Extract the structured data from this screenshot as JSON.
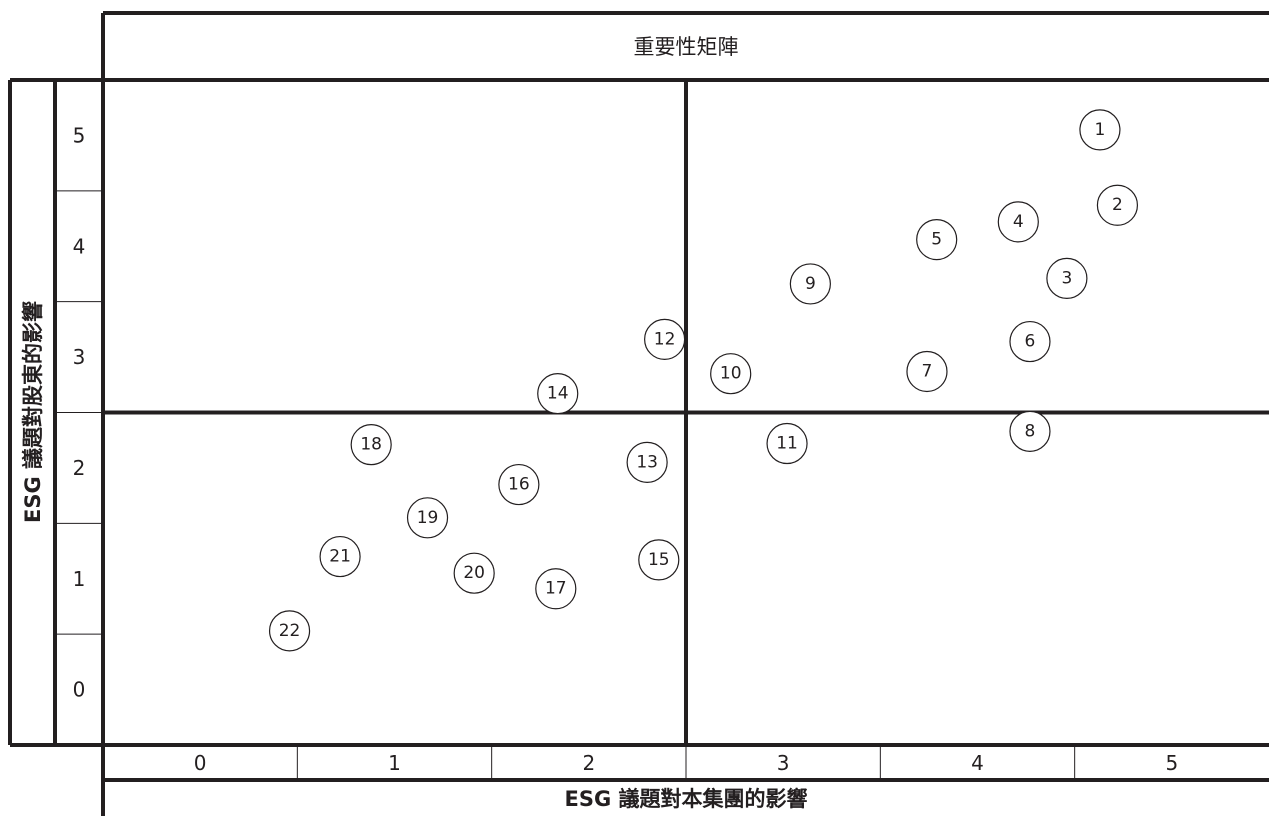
{
  "chart_data": {
    "type": "scatter",
    "title": "重要性矩陣",
    "xlabel": "ESG 議題對本集團的影響",
    "ylabel": "ESG 議題對股東的影響",
    "xlim": [
      0,
      6
    ],
    "ylim": [
      0,
      6
    ],
    "x_tick_labels": [
      "0",
      "1",
      "2",
      "3",
      "4",
      "5"
    ],
    "y_tick_labels": [
      "5",
      "4",
      "3",
      "2",
      "1",
      "0"
    ],
    "quadrant_split": {
      "x": 3,
      "y": 3
    },
    "points": [
      {
        "label": "1",
        "x": 5.13,
        "y": 5.55
      },
      {
        "label": "2",
        "x": 5.22,
        "y": 4.87
      },
      {
        "label": "3",
        "x": 4.96,
        "y": 4.21
      },
      {
        "label": "4",
        "x": 4.71,
        "y": 4.72
      },
      {
        "label": "5",
        "x": 4.29,
        "y": 4.56
      },
      {
        "label": "6",
        "x": 4.77,
        "y": 3.64
      },
      {
        "label": "7",
        "x": 4.24,
        "y": 3.37
      },
      {
        "label": "8",
        "x": 4.77,
        "y": 2.83
      },
      {
        "label": "9",
        "x": 3.64,
        "y": 4.16
      },
      {
        "label": "10",
        "x": 3.23,
        "y": 3.35
      },
      {
        "label": "11",
        "x": 3.52,
        "y": 2.72
      },
      {
        "label": "12",
        "x": 2.89,
        "y": 3.66
      },
      {
        "label": "13",
        "x": 2.8,
        "y": 2.55
      },
      {
        "label": "14",
        "x": 2.34,
        "y": 3.17
      },
      {
        "label": "15",
        "x": 2.86,
        "y": 1.67
      },
      {
        "label": "16",
        "x": 2.14,
        "y": 2.35
      },
      {
        "label": "17",
        "x": 2.33,
        "y": 1.41
      },
      {
        "label": "18",
        "x": 1.38,
        "y": 2.71
      },
      {
        "label": "19",
        "x": 1.67,
        "y": 2.05
      },
      {
        "label": "20",
        "x": 1.91,
        "y": 1.55
      },
      {
        "label": "21",
        "x": 1.22,
        "y": 1.7
      },
      {
        "label": "22",
        "x": 0.96,
        "y": 1.03
      }
    ]
  }
}
